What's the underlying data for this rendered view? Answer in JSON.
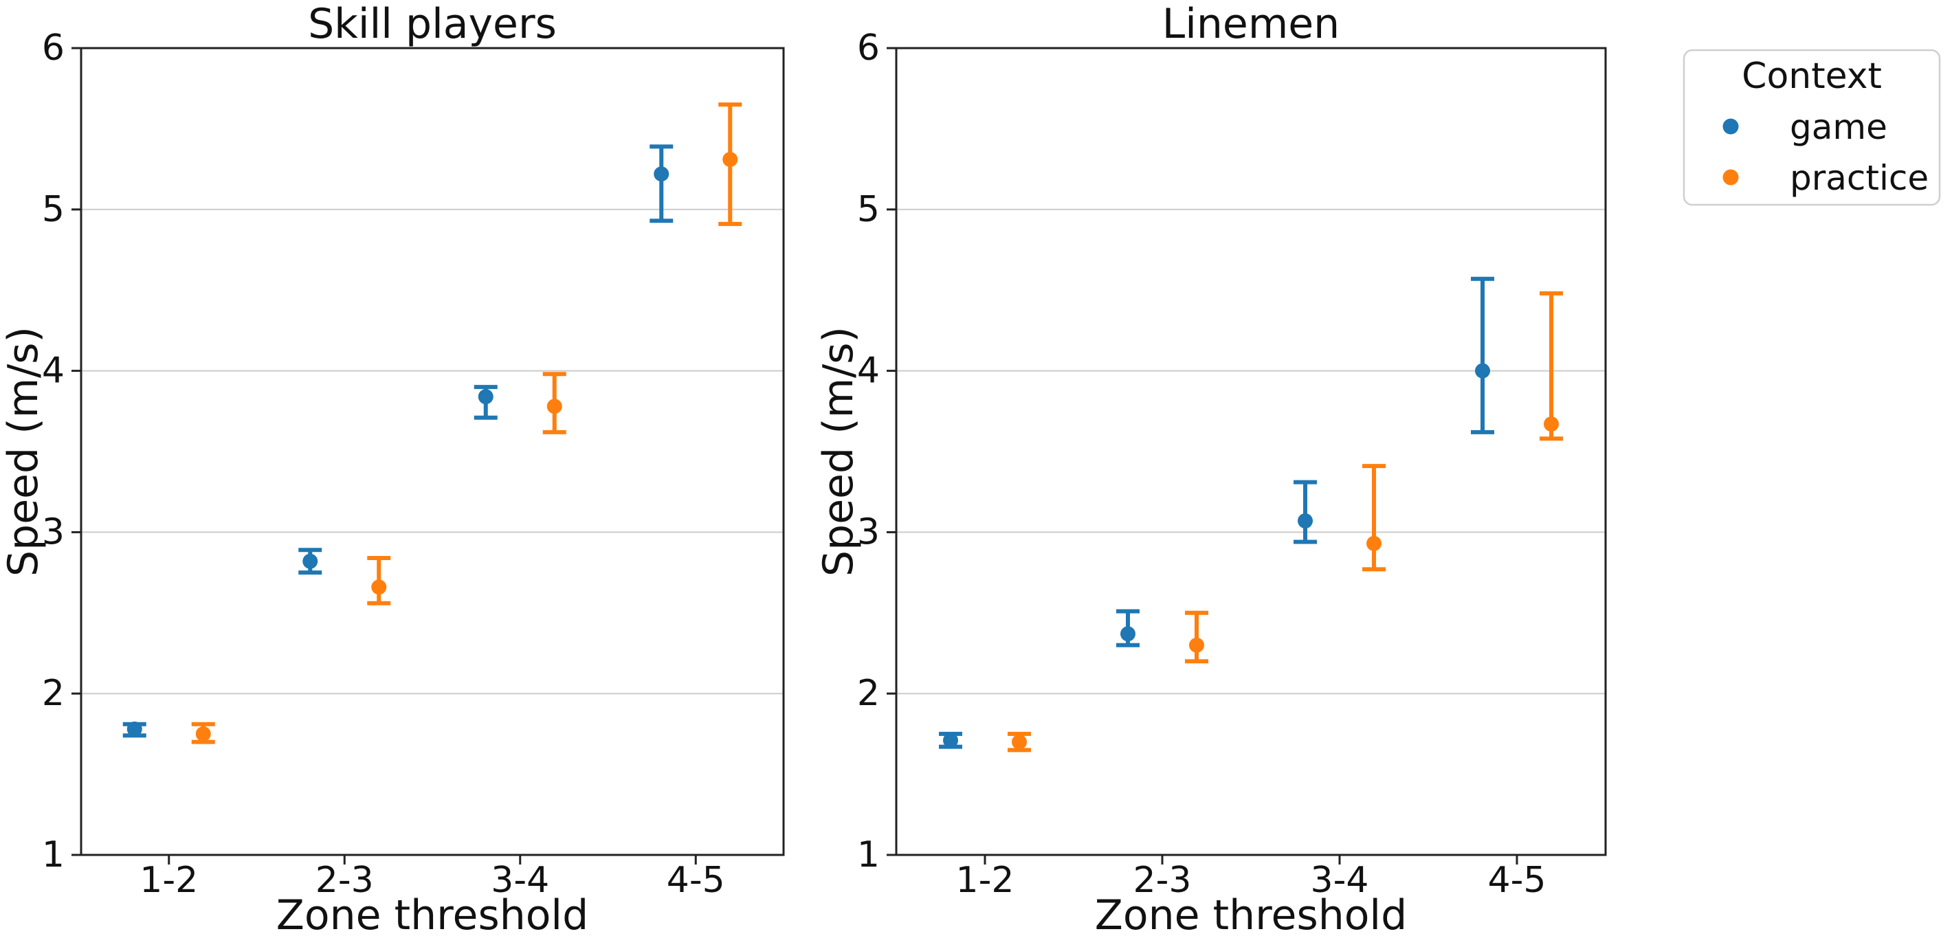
{
  "figure": {
    "background": "#ffffff",
    "text_color": "#111111",
    "spine_color": "#222222",
    "grid_color": "#cccccc"
  },
  "legend": {
    "title": "Context",
    "entries": [
      {
        "label": "game",
        "color": "#1f77b4",
        "marker": "circle-icon"
      },
      {
        "label": "practice",
        "color": "#ff7f0e",
        "marker": "circle-icon"
      }
    ]
  },
  "chart_data": [
    {
      "type": "scatter",
      "title": "Skill players",
      "xlabel": "Zone threshold",
      "ylabel": "Speed (m/s)",
      "categories": [
        "1-2",
        "2-3",
        "3-4",
        "4-5"
      ],
      "ylim": [
        1,
        6
      ],
      "yticks": [
        1,
        2,
        3,
        4,
        5,
        6
      ],
      "grid": "horizontal",
      "legend_position": "outside-top-right",
      "series": [
        {
          "name": "game",
          "color": "#1f77b4",
          "values": [
            1.78,
            2.82,
            3.84,
            5.22
          ],
          "ci_low": [
            1.74,
            2.75,
            3.71,
            4.93
          ],
          "ci_high": [
            1.81,
            2.89,
            3.9,
            5.39
          ]
        },
        {
          "name": "practice",
          "color": "#ff7f0e",
          "values": [
            1.75,
            2.66,
            3.78,
            5.31
          ],
          "ci_low": [
            1.7,
            2.56,
            3.62,
            4.91
          ],
          "ci_high": [
            1.81,
            2.84,
            3.98,
            5.65
          ]
        }
      ]
    },
    {
      "type": "scatter",
      "title": "Linemen",
      "xlabel": "Zone threshold",
      "ylabel": "Speed (m/s)",
      "categories": [
        "1-2",
        "2-3",
        "3-4",
        "4-5"
      ],
      "ylim": [
        1,
        6
      ],
      "yticks": [
        1,
        2,
        3,
        4,
        5,
        6
      ],
      "grid": "horizontal",
      "series": [
        {
          "name": "game",
          "color": "#1f77b4",
          "values": [
            1.71,
            2.37,
            3.07,
            4.0
          ],
          "ci_low": [
            1.67,
            2.3,
            2.94,
            3.62
          ],
          "ci_high": [
            1.75,
            2.51,
            3.31,
            4.57
          ]
        },
        {
          "name": "practice",
          "color": "#ff7f0e",
          "values": [
            1.7,
            2.3,
            2.93,
            3.67
          ],
          "ci_low": [
            1.65,
            2.2,
            2.77,
            3.58
          ],
          "ci_high": [
            1.75,
            2.5,
            3.41,
            4.48
          ]
        }
      ]
    }
  ]
}
